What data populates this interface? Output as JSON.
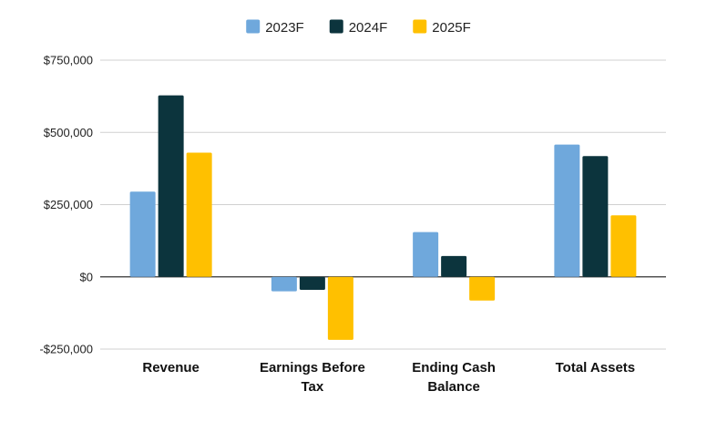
{
  "chart_data": {
    "type": "bar",
    "title": "",
    "xlabel": "",
    "ylabel": "",
    "categories": [
      [
        "Revenue"
      ],
      [
        "Earnings Before",
        "Tax"
      ],
      [
        "Ending Cash",
        "Balance"
      ],
      [
        "Total Assets"
      ]
    ],
    "series": [
      {
        "name": "2023F",
        "color": "#6fa8dc",
        "values": [
          295000,
          -50000,
          155000,
          458000
        ]
      },
      {
        "name": "2024F",
        "color": "#0c343d",
        "values": [
          628000,
          -45000,
          72000,
          418000
        ]
      },
      {
        "name": "2025F",
        "color": "#ffc000",
        "values": [
          430000,
          -218000,
          -82000,
          213000
        ]
      }
    ],
    "ylim": [
      -250000,
      750000
    ],
    "yticks": [
      750000,
      500000,
      250000,
      0,
      -250000
    ],
    "ytick_labels": [
      "$750,000",
      "$500,000",
      "$250,000",
      "$0",
      "-$250,000"
    ],
    "grid": true,
    "legend_position": "top-center"
  }
}
